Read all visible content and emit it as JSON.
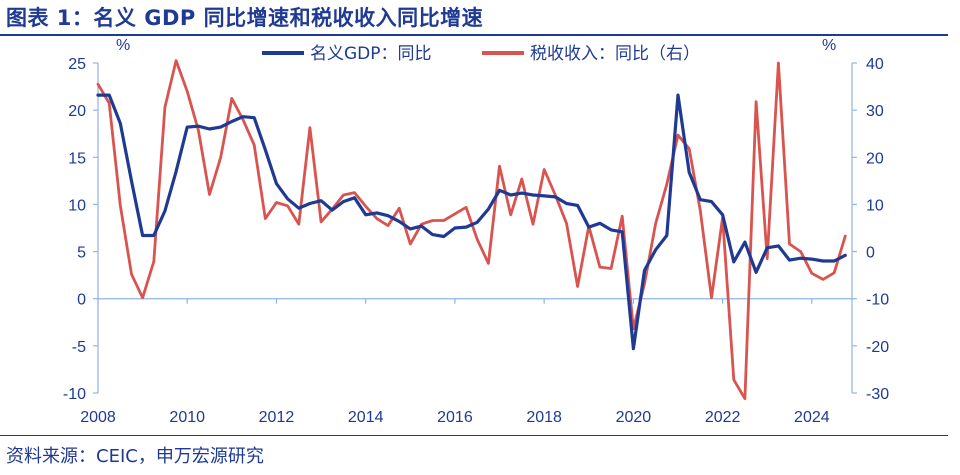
{
  "title": "图表 1：名义 GDP 同比增速和税收收入同比增速",
  "source": "资料来源：CEIC，申万宏源研究",
  "chart_data": {
    "type": "line",
    "left_axis": {
      "unit": "%",
      "ylim": [
        -10,
        25
      ],
      "ticks": [
        -10,
        -5,
        0,
        5,
        10,
        15,
        20,
        25
      ]
    },
    "right_axis": {
      "unit": "%",
      "ylim": [
        -30,
        40
      ],
      "ticks": [
        -30,
        -20,
        -10,
        0,
        10,
        20,
        30,
        40
      ]
    },
    "x_axis": {
      "xlim": [
        2008,
        2024.9
      ],
      "ticks": [
        2008,
        2010,
        2012,
        2014,
        2016,
        2018,
        2020,
        2022,
        2024
      ]
    },
    "legend_position": "top",
    "series": [
      {
        "name": "名义GDP：同比",
        "axis": "left",
        "color": "#1f3a93",
        "x": [
          2008,
          2008.25,
          2008.5,
          2008.75,
          2009,
          2009.25,
          2009.5,
          2009.75,
          2010,
          2010.25,
          2010.5,
          2010.75,
          2011,
          2011.25,
          2011.5,
          2011.75,
          2012,
          2012.25,
          2012.5,
          2012.75,
          2013,
          2013.25,
          2013.5,
          2013.75,
          2014,
          2014.25,
          2014.5,
          2014.75,
          2015,
          2015.25,
          2015.5,
          2015.75,
          2016,
          2016.25,
          2016.5,
          2016.75,
          2017,
          2017.25,
          2017.5,
          2017.75,
          2018,
          2018.25,
          2018.5,
          2018.75,
          2019,
          2019.25,
          2019.5,
          2019.75,
          2020,
          2020.25,
          2020.5,
          2020.75,
          2021,
          2021.25,
          2021.5,
          2021.75,
          2022,
          2022.25,
          2022.5,
          2022.75,
          2023,
          2023.25,
          2023.5,
          2023.75,
          2024,
          2024.25,
          2024.5,
          2024.75
        ],
        "values": [
          21.6,
          21.6,
          18.6,
          12.5,
          6.7,
          6.7,
          9.3,
          13.5,
          18.2,
          18.3,
          18.0,
          18.2,
          18.8,
          19.3,
          19.2,
          15.8,
          12.2,
          10.6,
          9.6,
          10.1,
          10.4,
          9.4,
          10.3,
          10.7,
          8.9,
          9.1,
          8.8,
          8.2,
          7.4,
          7.7,
          6.8,
          6.6,
          7.5,
          7.6,
          8.1,
          9.5,
          11.5,
          11.0,
          11.2,
          11.0,
          10.9,
          10.8,
          10.1,
          9.9,
          7.6,
          8.0,
          7.3,
          7.1,
          -5.3,
          3.0,
          5.2,
          6.7,
          21.6,
          13.4,
          10.5,
          10.3,
          8.9,
          3.9,
          6.0,
          2.8,
          5.4,
          5.6,
          4.1,
          4.3,
          4.2,
          4.0,
          4.0,
          4.6
        ]
      },
      {
        "name": "税收收入：同比（右）",
        "axis": "right",
        "color": "#d9534f",
        "x": [
          2008,
          2008.25,
          2008.5,
          2008.75,
          2009,
          2009.25,
          2009.5,
          2009.75,
          2010,
          2010.25,
          2010.5,
          2010.75,
          2011,
          2011.25,
          2011.5,
          2011.75,
          2012,
          2012.25,
          2012.5,
          2012.75,
          2013,
          2013.25,
          2013.5,
          2013.75,
          2014,
          2014.25,
          2014.5,
          2014.75,
          2015,
          2015.25,
          2015.5,
          2015.75,
          2016,
          2016.25,
          2016.5,
          2016.75,
          2017,
          2017.25,
          2017.5,
          2017.75,
          2018,
          2018.25,
          2018.5,
          2018.75,
          2019,
          2019.25,
          2019.5,
          2019.75,
          2020,
          2020.25,
          2020.5,
          2020.75,
          2021,
          2021.25,
          2021.5,
          2021.75,
          2022,
          2022.25,
          2022.5,
          2022.75,
          2023,
          2023.25,
          2023.5,
          2023.75,
          2024,
          2024.25,
          2024.5,
          2024.75
        ],
        "values": [
          35.5,
          31.5,
          9.8,
          -4.8,
          -9.8,
          -2.1,
          30.6,
          40.5,
          34.0,
          25.7,
          12.1,
          20.0,
          32.5,
          28.0,
          22.6,
          7.0,
          10.4,
          9.7,
          5.8,
          26.3,
          6.3,
          9.0,
          12.0,
          12.5,
          9.6,
          7.0,
          5.5,
          9.2,
          1.6,
          5.8,
          6.6,
          6.6,
          8.0,
          9.4,
          2.6,
          -2.5,
          18.1,
          7.8,
          15.4,
          5.8,
          17.4,
          12.0,
          6.0,
          -7.4,
          5.4,
          -3.3,
          -3.6,
          7.5,
          -16.4,
          -6.8,
          6.0,
          14.3,
          24.7,
          21.8,
          8.7,
          -9.8,
          7.2,
          -27.2,
          -31.2,
          31.8,
          -1.5,
          40.0,
          1.6,
          0.0,
          -4.6,
          -5.9,
          -4.5,
          3.3
        ]
      }
    ]
  }
}
